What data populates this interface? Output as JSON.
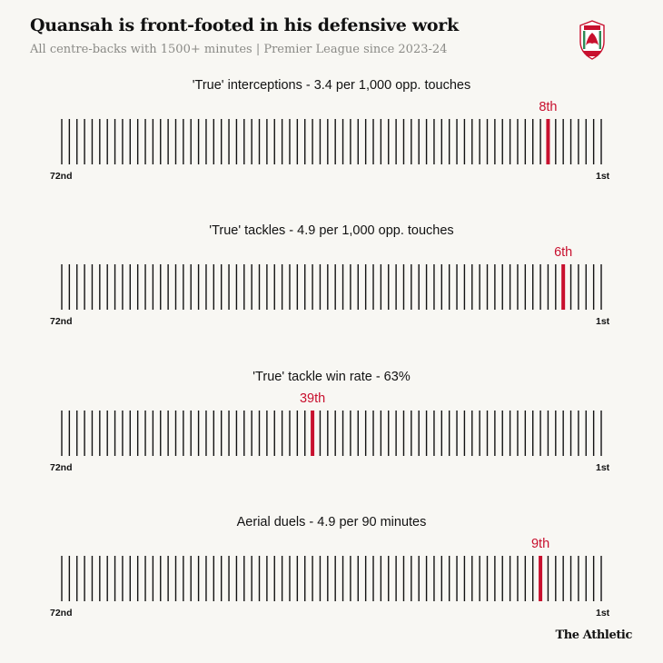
{
  "header": {
    "title": "Quansah is front-footed in his defensive work",
    "subtitle": "All centre-backs with 1500+ minutes | Premier League since 2023-24"
  },
  "brand": "The Athletic",
  "logo_name": "liverpool-fc-crest-icon",
  "colors": {
    "highlight": "#c8102e",
    "tick": "#121212",
    "background": "#f8f7f3"
  },
  "chart_data": [
    {
      "type": "rank-strip",
      "title": "'True' interceptions - 3.4 per 1,000 opp. touches",
      "total": 72,
      "rank": 8,
      "rank_label": "8th",
      "left_label": "72nd",
      "right_label": "1st"
    },
    {
      "type": "rank-strip",
      "title": "'True' tackles - 4.9 per 1,000 opp. touches",
      "total": 72,
      "rank": 6,
      "rank_label": "6th",
      "left_label": "72nd",
      "right_label": "1st"
    },
    {
      "type": "rank-strip",
      "title": "'True' tackle win rate - 63%",
      "total": 72,
      "rank": 39,
      "rank_label": "39th",
      "left_label": "72nd",
      "right_label": "1st"
    },
    {
      "type": "rank-strip",
      "title": "Aerial duels - 4.9 per 90 minutes",
      "total": 72,
      "rank": 9,
      "rank_label": "9th",
      "left_label": "72nd",
      "right_label": "1st"
    }
  ]
}
